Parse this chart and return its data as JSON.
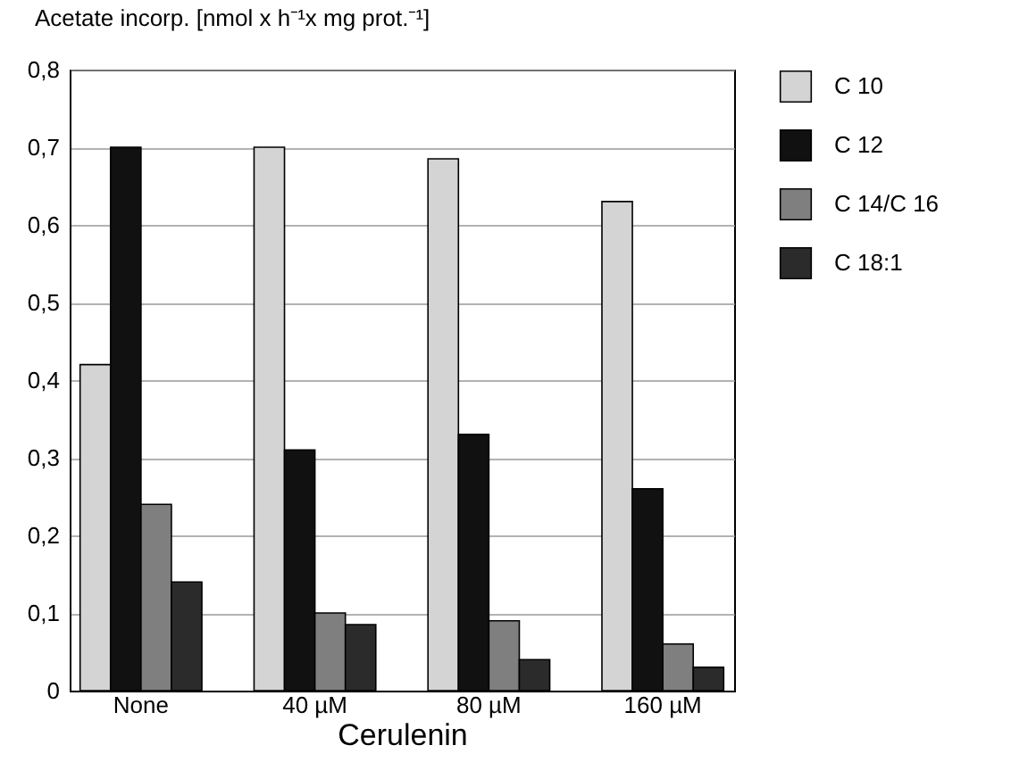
{
  "chart_data": {
    "type": "bar",
    "ylabel": "Acetate incorp. [nmol x h⁻¹x mg prot.⁻¹]",
    "xlabel": "Cerulenin",
    "categories": [
      "None",
      "40 µM",
      "80 µM",
      "160 µM"
    ],
    "series": [
      {
        "name": "C 10",
        "color": "#d4d4d4",
        "values": [
          0.42,
          0.7,
          0.685,
          0.63
        ]
      },
      {
        "name": "C 12",
        "color": "#111111",
        "values": [
          0.7,
          0.31,
          0.33,
          0.26
        ]
      },
      {
        "name": "C 14/C 16",
        "color": "#7f7f7f",
        "values": [
          0.24,
          0.1,
          0.09,
          0.06
        ]
      },
      {
        "name": "C 18:1",
        "color": "#2b2b2b",
        "values": [
          0.14,
          0.085,
          0.04,
          0.03
        ]
      }
    ],
    "ylim": [
      0,
      0.8
    ],
    "yticks": [
      0,
      {
        "value": 0.1,
        "label": "0,1"
      },
      {
        "value": 0.2,
        "label": "0,2"
      },
      {
        "value": 0.3,
        "label": "0,3"
      },
      {
        "value": 0.4,
        "label": "0,4"
      },
      {
        "value": 0.5,
        "label": "0,5"
      },
      {
        "value": 0.6,
        "label": "0,6"
      },
      {
        "value": 0.7,
        "label": "0,7"
      },
      {
        "value": 0.8,
        "label": "0,8"
      }
    ],
    "grid": "y",
    "legend": "right"
  }
}
